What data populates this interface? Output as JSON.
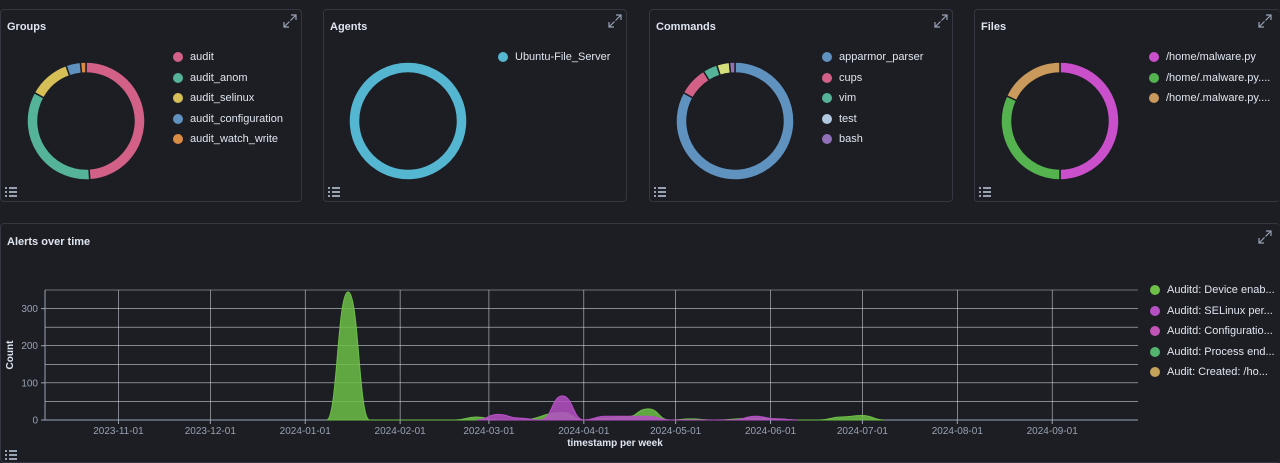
{
  "panels": {
    "groups": {
      "title": "Groups",
      "legend": [
        {
          "label": "audit",
          "color": "#d36086"
        },
        {
          "label": "audit_anom",
          "color": "#54b399"
        },
        {
          "label": "audit_selinux",
          "color": "#d6bf57"
        },
        {
          "label": "audit_configuration",
          "color": "#6092c0"
        },
        {
          "label": "audit_watch_write",
          "color": "#da8b45"
        }
      ],
      "slices": [
        {
          "label": "audit",
          "value": 49,
          "color": "#d36086"
        },
        {
          "label": "audit_anom",
          "value": 34,
          "color": "#54b399"
        },
        {
          "label": "audit_selinux",
          "value": 11.5,
          "color": "#d6bf57"
        },
        {
          "label": "audit_configuration",
          "value": 4,
          "color": "#6092c0"
        },
        {
          "label": "audit_watch_write",
          "value": 1.5,
          "color": "#da8b45"
        }
      ]
    },
    "agents": {
      "title": "Agents",
      "legend": [
        {
          "label": "Ubuntu-File_Server",
          "color": "#54b6d1"
        }
      ],
      "slices": [
        {
          "label": "Ubuntu-File_Server",
          "value": 100,
          "color": "#54b6d1"
        }
      ]
    },
    "commands": {
      "title": "Commands",
      "legend": [
        {
          "label": "apparmor_parser",
          "color": "#6092c0"
        },
        {
          "label": "cups",
          "color": "#d36086"
        },
        {
          "label": "vim",
          "color": "#54b399"
        },
        {
          "label": "test",
          "color": "#b0c9e0"
        },
        {
          "label": "bash",
          "color": "#9170b8"
        }
      ],
      "slices": [
        {
          "label": "apparmor_parser",
          "value": 83,
          "color": "#6092c0"
        },
        {
          "label": "cups",
          "value": 8,
          "color": "#d36086"
        },
        {
          "label": "vim",
          "value": 4,
          "color": "#54b399"
        },
        {
          "label": "test",
          "value": 3.5,
          "color": "#d6e07a"
        },
        {
          "label": "bash",
          "value": 1.5,
          "color": "#9170b8"
        }
      ]
    },
    "files": {
      "title": "Files",
      "legend": [
        {
          "label": "/home/malware.py",
          "color": "#ca4fcb"
        },
        {
          "label": "/home/.malware.py....",
          "color": "#54b34f"
        },
        {
          "label": "/home/.malware.py....",
          "color": "#c99a5b"
        }
      ],
      "slices": [
        {
          "label": "/home/malware.py",
          "value": 50,
          "color": "#ca4fcb"
        },
        {
          "label": "/home/.malware.py.... (1)",
          "value": 32,
          "color": "#54b34f"
        },
        {
          "label": "/home/.malware.py.... (2)",
          "value": 18,
          "color": "#c99a5b"
        }
      ]
    }
  },
  "alerts": {
    "title": "Alerts over time",
    "legend": [
      {
        "label": "Auditd: Device enab...",
        "color": "#6dbf47"
      },
      {
        "label": "Auditd: SELinux per...",
        "color": "#b550c4"
      },
      {
        "label": "Auditd: Configuratio...",
        "color": "#c254b8"
      },
      {
        "label": "Auditd: Process end...",
        "color": "#54b36d"
      },
      {
        "label": "Audit: Created: /ho...",
        "color": "#c4a35a"
      }
    ]
  },
  "chart_data": {
    "type": "area",
    "title": "Alerts over time",
    "xlabel": "timestamp per week",
    "ylabel": "Count",
    "x_ticks": [
      "2023-11-01",
      "2023-12-01",
      "2024-01-01",
      "2024-02-01",
      "2024-03-01",
      "2024-04-01",
      "2024-05-01",
      "2024-06-01",
      "2024-07-01",
      "2024-08-01",
      "2024-09-01"
    ],
    "y_ticks": [
      0,
      100,
      200,
      300
    ],
    "ylim": [
      0,
      350
    ],
    "xlim": [
      "2023-10-08",
      "2024-09-30"
    ],
    "grid": true,
    "legend_position": "right",
    "series": [
      {
        "name": "Auditd: Device enab...",
        "color": "#6dbf47",
        "points": [
          [
            "2024-01-08",
            0
          ],
          [
            "2024-01-15",
            345
          ],
          [
            "2024-01-22",
            0
          ],
          [
            "2024-02-19",
            0
          ],
          [
            "2024-02-26",
            8
          ],
          [
            "2024-03-04",
            0
          ],
          [
            "2024-03-11",
            0
          ],
          [
            "2024-03-25",
            20
          ],
          [
            "2024-04-01",
            0
          ],
          [
            "2024-04-08",
            5
          ],
          [
            "2024-04-15",
            8
          ],
          [
            "2024-04-22",
            30
          ],
          [
            "2024-04-29",
            0
          ],
          [
            "2024-05-06",
            3
          ],
          [
            "2024-05-13",
            0
          ],
          [
            "2024-05-27",
            5
          ],
          [
            "2024-06-03",
            3
          ],
          [
            "2024-06-10",
            0
          ],
          [
            "2024-06-17",
            0
          ],
          [
            "2024-06-24",
            8
          ],
          [
            "2024-07-01",
            12
          ],
          [
            "2024-07-08",
            0
          ]
        ]
      },
      {
        "name": "Auditd: SELinux per...",
        "color": "#b550c4",
        "points": [
          [
            "2024-02-26",
            0
          ],
          [
            "2024-03-04",
            15
          ],
          [
            "2024-03-11",
            5
          ],
          [
            "2024-03-18",
            0
          ],
          [
            "2024-03-25",
            65
          ],
          [
            "2024-04-01",
            0
          ],
          [
            "2024-04-08",
            10
          ],
          [
            "2024-04-15",
            10
          ],
          [
            "2024-04-22",
            10
          ],
          [
            "2024-04-29",
            0
          ],
          [
            "2024-05-20",
            0
          ],
          [
            "2024-05-27",
            10
          ],
          [
            "2024-06-03",
            3
          ],
          [
            "2024-06-10",
            0
          ]
        ]
      }
    ]
  }
}
